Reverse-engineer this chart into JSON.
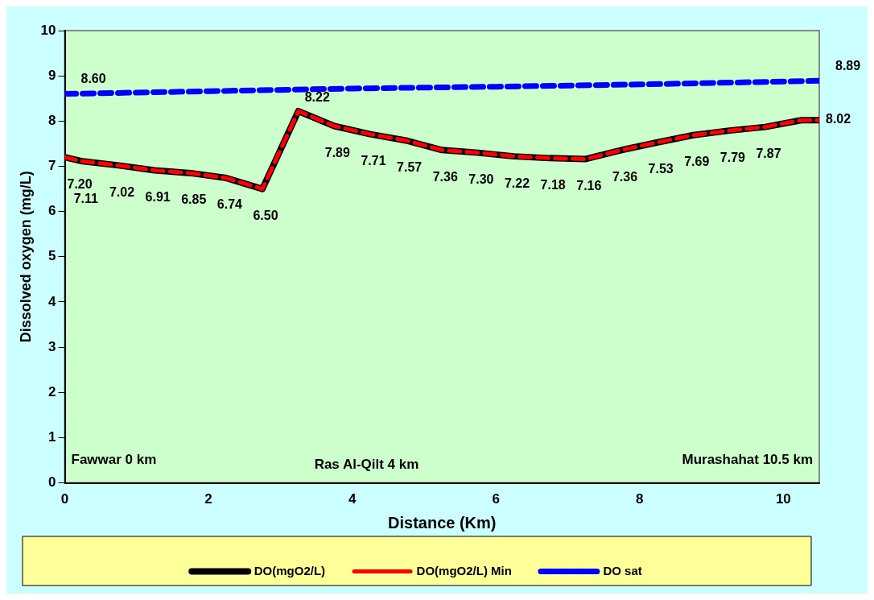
{
  "chart_data": {
    "type": "line",
    "xlabel": "Distance (Km)",
    "ylabel": "Dissolved oxygen (mg/L)",
    "xlim": [
      0,
      10.5
    ],
    "xticks": [
      0,
      2,
      4,
      6,
      8,
      10
    ],
    "ylim": [
      0,
      10
    ],
    "yticks": [
      0,
      1,
      2,
      3,
      4,
      5,
      6,
      7,
      8,
      9,
      10
    ],
    "grid": false,
    "legend": "bottom",
    "marker": "none",
    "series": [
      {
        "name": "DO(mgO2/L)",
        "color": "#000000",
        "line_style": "solid",
        "x": [
          0,
          0.25,
          0.75,
          1.25,
          1.75,
          2.25,
          2.75,
          3.25,
          3.75,
          4.25,
          4.75,
          5.25,
          5.75,
          6.25,
          6.75,
          7.25,
          7.75,
          8.25,
          8.75,
          9.25,
          9.75,
          10.25,
          10.5
        ],
        "values": [
          7.2,
          7.11,
          7.02,
          6.91,
          6.85,
          6.74,
          6.5,
          8.22,
          7.89,
          7.71,
          7.57,
          7.36,
          7.3,
          7.22,
          7.18,
          7.16,
          7.36,
          7.53,
          7.69,
          7.79,
          7.87,
          8.02,
          8.02
        ],
        "value_labels": [
          "7.20",
          "7.11",
          "7.02",
          "6.91",
          "6.85",
          "6.74",
          "6.50",
          "8.22",
          "7.89",
          "7.71",
          "7.57",
          "7.36",
          "7.30",
          "7.22",
          "7.18",
          "7.16",
          "7.36",
          "7.53",
          "7.69",
          "7.79",
          "7.87",
          null,
          "8.02"
        ]
      },
      {
        "name": "DO(mgO2/L) Min",
        "color": "#ff0000",
        "line_style": "dashed",
        "x": [
          0,
          0.25,
          0.75,
          1.25,
          1.75,
          2.25,
          2.75,
          3.25,
          3.75,
          4.25,
          4.75,
          5.25,
          5.75,
          6.25,
          6.75,
          7.25,
          7.75,
          8.25,
          8.75,
          9.25,
          9.75,
          10.25,
          10.5
        ],
        "values": [
          7.2,
          7.11,
          7.02,
          6.91,
          6.85,
          6.74,
          6.5,
          8.22,
          7.89,
          7.71,
          7.57,
          7.36,
          7.3,
          7.22,
          7.18,
          7.16,
          7.36,
          7.53,
          7.69,
          7.79,
          7.87,
          8.02,
          8.02
        ]
      },
      {
        "name": "DO sat",
        "color": "#0000ff",
        "line_style": "dashed",
        "x": [
          0,
          2,
          4,
          6,
          8,
          10.5
        ],
        "values": [
          8.6,
          8.66,
          8.72,
          8.76,
          8.81,
          8.89
        ],
        "value_labels": [
          "8.60",
          null,
          null,
          null,
          null,
          "8.89"
        ]
      }
    ],
    "annotations": [
      "Fawwar 0 km",
      "Ras Al-Qilt 4 km",
      "Murashahat 10.5 km"
    ]
  }
}
